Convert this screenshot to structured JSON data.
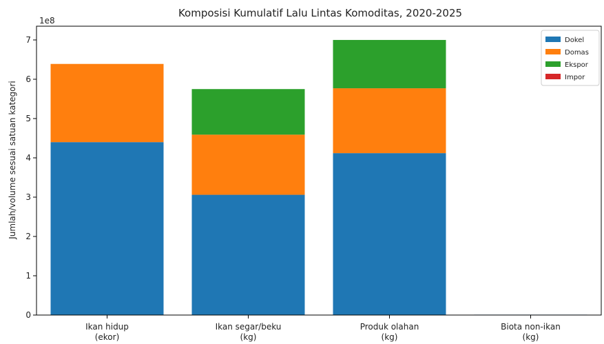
{
  "chart_data": {
    "type": "bar",
    "stacked": true,
    "title": "Komposisi Kumulatif Lalu Lintas Komoditas, 2020-2025",
    "ylabel": "Jumlah/volume sesuai satuan kategori",
    "xlabel": "",
    "y_multiplier_label": "1e8",
    "ylim": [
      0,
      7.35
    ],
    "yticks": [
      0,
      1,
      2,
      3,
      4,
      5,
      6,
      7
    ],
    "grid": false,
    "legend_position": "top-right",
    "categories": [
      [
        "Ikan hidup",
        "(ekor)"
      ],
      [
        "Ikan segar/beku",
        "(kg)"
      ],
      [
        "Produk olahan",
        "(kg)"
      ],
      [
        "Biota non-ikan",
        "(kg)"
      ]
    ],
    "series": [
      {
        "name": "Dokel",
        "color": "#1f77b4",
        "values": [
          4.4,
          3.06,
          4.12,
          0.01
        ]
      },
      {
        "name": "Domas",
        "color": "#ff7f0e",
        "values": [
          1.99,
          1.53,
          1.65,
          0.0
        ]
      },
      {
        "name": "Ekspor",
        "color": "#2ca02c",
        "values": [
          0.0,
          1.16,
          1.23,
          0.0
        ]
      },
      {
        "name": "Impor",
        "color": "#d62728",
        "values": [
          0.0,
          0.0,
          0.0,
          0.0
        ]
      }
    ]
  }
}
